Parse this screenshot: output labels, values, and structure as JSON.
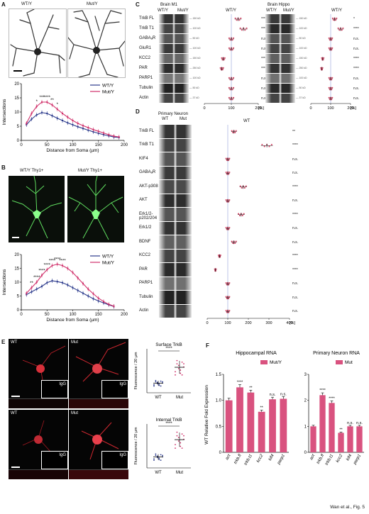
{
  "figure_credit": "Wan et al., Fig. 5",
  "panelA": {
    "letter": "A",
    "img_labels": [
      "WT/Y",
      "Mut/Y"
    ],
    "chart_data": {
      "type": "line",
      "xlabel": "Distance from Soma (µm)",
      "ylabel": "Intersections",
      "xlim": [
        0,
        200
      ],
      "ylim": [
        0,
        20
      ],
      "xticks": [
        0,
        50,
        100,
        150,
        200
      ],
      "yticks": [
        0,
        5,
        10,
        15,
        20
      ],
      "x": [
        10,
        20,
        30,
        40,
        50,
        60,
        70,
        80,
        90,
        100,
        110,
        120,
        130,
        140,
        150,
        160,
        170,
        180,
        190
      ],
      "series": [
        {
          "name": "WT/Y",
          "color": "#2b3a8c",
          "values": [
            5.5,
            7.5,
            9.0,
            9.8,
            9.5,
            8.7,
            7.8,
            7.0,
            6.2,
            5.5,
            4.8,
            4.2,
            3.6,
            3.0,
            2.5,
            2.0,
            1.6,
            1.2,
            1.0
          ]
        },
        {
          "name": "Mut/Y",
          "color": "#d0306a",
          "values": [
            6.0,
            9.5,
            12.0,
            13.5,
            13.5,
            12.5,
            11.0,
            9.5,
            8.2,
            7.0,
            6.0,
            5.2,
            4.5,
            3.8,
            3.2,
            2.6,
            2.0,
            1.5,
            1.2
          ]
        }
      ],
      "annotations": [
        "*",
        "***",
        "****",
        "**",
        "*"
      ]
    }
  },
  "panelB": {
    "letter": "B",
    "img_labels": [
      "WT/Y Thy1+",
      "Mut/Y Thy1+"
    ],
    "chart_data": {
      "type": "line",
      "xlabel": "Distance from Soma (µm)",
      "ylabel": "Intersections",
      "xlim": [
        0,
        200
      ],
      "ylim": [
        0,
        20
      ],
      "xticks": [
        0,
        50,
        100,
        150,
        200
      ],
      "yticks": [
        0,
        5,
        10,
        15,
        20
      ],
      "x": [
        10,
        20,
        30,
        40,
        50,
        60,
        70,
        80,
        90,
        100,
        110,
        120,
        130,
        140,
        150,
        160,
        170,
        180
      ],
      "series": [
        {
          "name": "WT/Y",
          "color": "#2b3a8c",
          "values": [
            5.5,
            6.5,
            7.5,
            8.5,
            9.8,
            10.5,
            10.2,
            9.8,
            9.0,
            8.0,
            7.0,
            6.0,
            5.0,
            4.0,
            3.2,
            2.5,
            1.8,
            1.2
          ]
        },
        {
          "name": "Mut/Y",
          "color": "#d0306a",
          "values": [
            6.0,
            8.0,
            10.0,
            12.5,
            14.5,
            16.0,
            16.5,
            16.0,
            15.0,
            13.5,
            11.5,
            9.5,
            7.5,
            5.8,
            4.2,
            3.0,
            2.0,
            1.3
          ]
        }
      ],
      "annotations": [
        "**",
        "****",
        "****",
        "****",
        "****",
        "****",
        "****"
      ]
    }
  },
  "panelC": {
    "letter": "C",
    "blot1_title": "Brain M1",
    "blot2_title": "Brain Hippo",
    "col_labels": [
      "WT/Y",
      "Mut/Y"
    ],
    "plot_title": "WT/Y",
    "rows": [
      "TrkB FL",
      "TrkB T1",
      "GABAₐR",
      "GluR1",
      "KCC2",
      "PAR",
      "PARP1",
      "Tubulin",
      "Actin"
    ],
    "kd": [
      "150 kD",
      "100 kD",
      "50 kD",
      "100 kD",
      "150 kD",
      "250 kD",
      "100 kD",
      "50 kD",
      "37 kD"
    ],
    "sig_m1": [
      "****",
      "****",
      "n.s.",
      "n.s.",
      "****",
      "****",
      "n.s.",
      "n.s.",
      "n.s."
    ],
    "sig_hippo": [
      "*",
      "****",
      "n.s.",
      "n.s.",
      "****",
      "****",
      "n.s.",
      "n.s.",
      "n.s."
    ],
    "chart_data": {
      "type": "scatter",
      "xticks": [
        0,
        100,
        200
      ],
      "xunit": "[%]",
      "m1_means": [
        125,
        145,
        100,
        100,
        70,
        65,
        100,
        100,
        100
      ],
      "hippo_means": [
        120,
        150,
        100,
        100,
        60,
        55,
        100,
        100,
        100
      ]
    }
  },
  "panelD": {
    "letter": "D",
    "blot_title": "Primary Neuron",
    "col_labels": [
      "WT",
      "Mut"
    ],
    "plot_title": "WT",
    "rows": [
      "TrkB FL",
      "TrkB T1",
      "KIF4",
      "GABAₐR",
      "AKT-p308",
      "AKT",
      "Erk1/2-\np202/204",
      "Erk1/2",
      "BDNF",
      "KCC2",
      "PAR",
      "PARP1",
      "Tubulin",
      "Actin"
    ],
    "sig": [
      "**",
      "****",
      "n.s.",
      "n.s.",
      "****",
      "n.s.",
      "****",
      "n.s.",
      "n.s.",
      "****",
      "****",
      "n.s.",
      "n.s.",
      "n.s."
    ],
    "chart_data": {
      "type": "scatter",
      "xticks": [
        0,
        100,
        200,
        300,
        400
      ],
      "xunit": "[%]",
      "means": [
        130,
        290,
        100,
        100,
        175,
        100,
        165,
        100,
        130,
        60,
        40,
        100,
        100,
        100
      ]
    }
  },
  "panelE": {
    "letter": "E",
    "labels": [
      "WT",
      "Mut",
      "WT",
      "Mut"
    ],
    "igg": "IgG",
    "surface": {
      "title": "Surface TrkB",
      "ylabel": "Fluorescence / 20 µm",
      "sig": "****",
      "categories": [
        "WT",
        "Mut"
      ],
      "means": [
        22,
        58
      ]
    },
    "internal": {
      "title": "Internal TrkB",
      "ylabel": "Fluorescence / 20 µm",
      "sig": "****",
      "categories": [
        "WT",
        "Mut"
      ],
      "means": [
        35,
        90
      ]
    }
  },
  "panelF": {
    "letter": "F",
    "ylabel": "WT Relative Fold Expression",
    "hippo": {
      "title": "Hippocampal RNA",
      "legend": "Mut/Y",
      "chart_data": {
        "type": "bar",
        "categories": [
          "act",
          "trkb.fl",
          "trkb.t1",
          "kcc2",
          "kif4",
          "parp1"
        ],
        "values": [
          1.0,
          1.25,
          1.15,
          0.78,
          1.02,
          1.03
        ],
        "sig": [
          "",
          "****",
          "**",
          "**",
          "n.s.",
          "n.s."
        ],
        "ylim": [
          0,
          1.5
        ],
        "yticks": [
          0,
          0.5,
          1.0,
          1.5
        ],
        "ytick_labels": [
          "0",
          "0.5",
          "1.0",
          "1.5"
        ]
      }
    },
    "primary": {
      "title": "Primary Neuron RNA",
      "legend": "Mut",
      "chart_data": {
        "type": "bar",
        "categories": [
          "act",
          "trkb.fl",
          "trkb.t1",
          "kcc2",
          "kif4",
          "parp1"
        ],
        "values": [
          1.0,
          2.2,
          1.9,
          0.75,
          1.0,
          1.0
        ],
        "sig": [
          "",
          "****",
          "****",
          "**",
          "n.s.",
          "n.s."
        ],
        "ylim": [
          0,
          3
        ],
        "yticks": [
          0,
          1,
          2,
          3
        ],
        "ytick_labels": [
          "0",
          "1",
          "2",
          "3"
        ]
      }
    }
  }
}
